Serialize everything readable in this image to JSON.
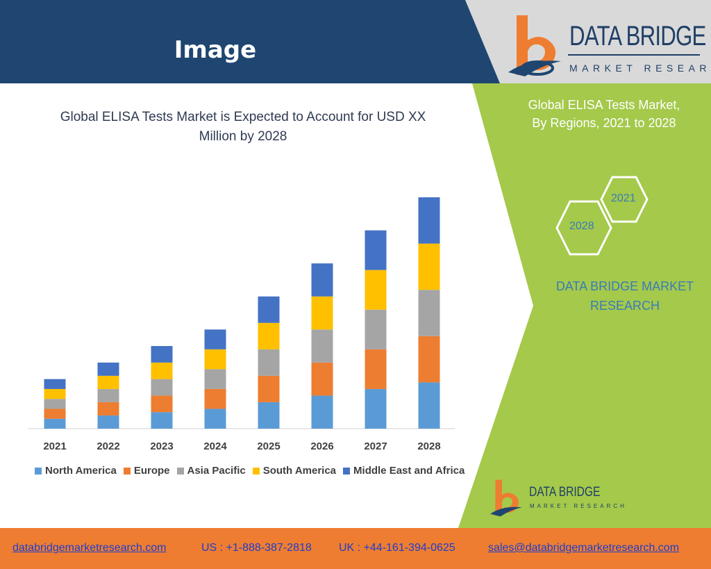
{
  "header": {
    "title": "Image"
  },
  "logo": {
    "name": "DATA BRIDGE",
    "subtitle": "MARKET RESEARCH"
  },
  "right_panel": {
    "title": "Global ELISA Tests Market,\nBy Regions, 2021 to 2028",
    "hex_start": "2021",
    "hex_end": "2028",
    "brand": "DATA BRIDGE MARKET RESEARCH"
  },
  "small_logo": {
    "name": "DATA BRIDGE",
    "subtitle": "MARKET RESEARCH"
  },
  "footer": {
    "website": "databridgemarketresearch.com",
    "us_phone": "US : +1-888-387-2818",
    "uk_phone": "UK : +44-161-394-0625",
    "email": "sales@databridgemarketresearch.com"
  },
  "colors": {
    "header_bg": "#1f4670",
    "panel_green": "#a4c94b",
    "footer_orange": "#ee7d31",
    "north_america": "#5b9bd5",
    "europe": "#ed7d31",
    "asia_pacific": "#a5a5a5",
    "south_america": "#ffc000",
    "middle_east_africa": "#4472c4"
  },
  "chart_data": {
    "type": "bar",
    "stacked": true,
    "title": "Global ELISA Tests Market is Expected to Account for USD XX Million by 2028",
    "categories": [
      "2021",
      "2022",
      "2023",
      "2024",
      "2025",
      "2026",
      "2027",
      "2028"
    ],
    "series": [
      {
        "name": "North America",
        "color": "#5b9bd5",
        "values": [
          3.0,
          4.0,
          5.0,
          6.0,
          8.0,
          10.0,
          12.0,
          14.0
        ]
      },
      {
        "name": "Europe",
        "color": "#ed7d31",
        "values": [
          3.0,
          4.0,
          5.0,
          6.0,
          8.0,
          10.0,
          12.0,
          14.0
        ]
      },
      {
        "name": "Asia Pacific",
        "color": "#a5a5a5",
        "values": [
          3.0,
          4.0,
          5.0,
          6.0,
          8.0,
          10.0,
          12.0,
          14.0
        ]
      },
      {
        "name": "South America",
        "color": "#ffc000",
        "values": [
          3.0,
          4.0,
          5.0,
          6.0,
          8.0,
          10.0,
          12.0,
          14.0
        ]
      },
      {
        "name": "Middle East and Africa",
        "color": "#4472c4",
        "values": [
          3.0,
          4.0,
          5.0,
          6.0,
          8.0,
          10.0,
          12.0,
          14.0
        ]
      }
    ],
    "legend_position": "bottom",
    "grid": false
  }
}
